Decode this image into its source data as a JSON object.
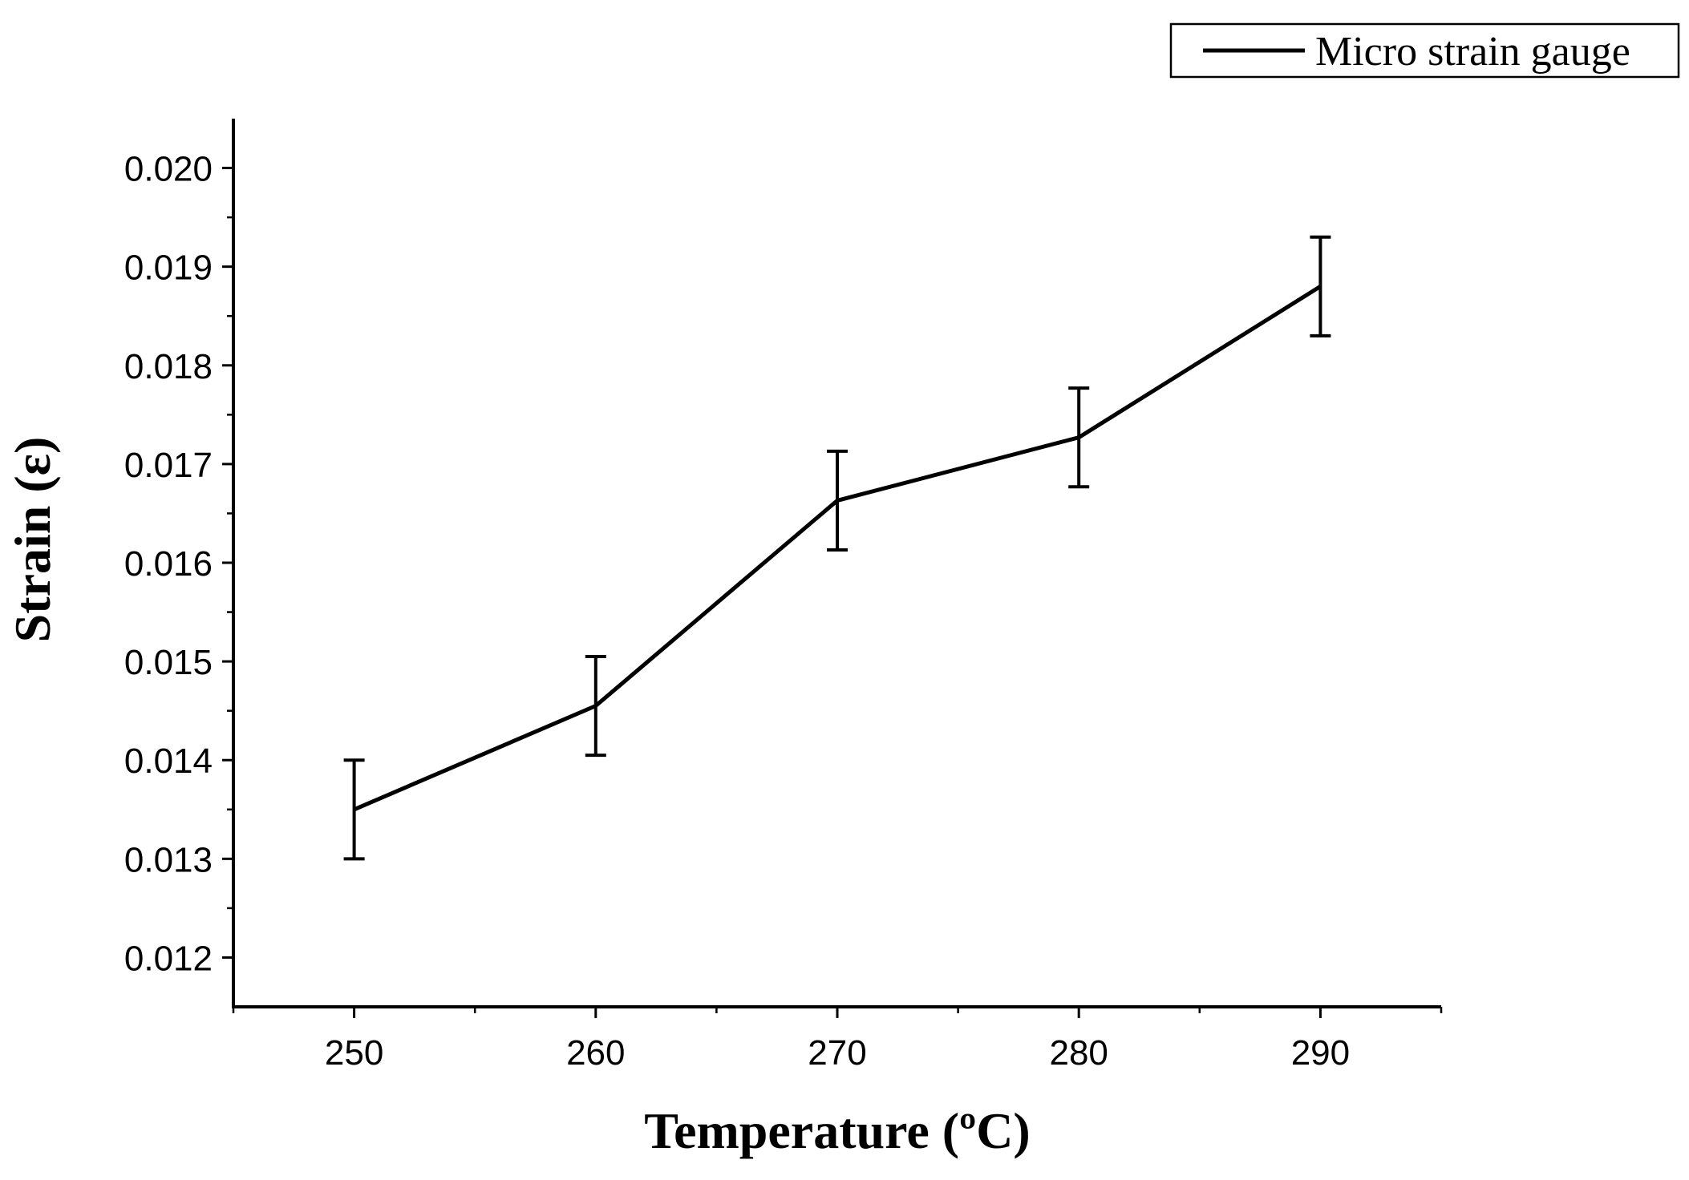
{
  "chart_data": {
    "type": "line",
    "title": "",
    "xlabel": "Temperature (ºC)",
    "ylabel": "Strain (ε)",
    "xlim": [
      245,
      295
    ],
    "ylim": [
      0.0115,
      0.0205
    ],
    "x_ticks": [
      250,
      260,
      270,
      280,
      290
    ],
    "x_tick_labels": [
      "250",
      "260",
      "270",
      "280",
      "290"
    ],
    "y_ticks": [
      0.012,
      0.013,
      0.014,
      0.015,
      0.016,
      0.017,
      0.018,
      0.019,
      0.02
    ],
    "y_tick_labels": [
      "0.012",
      "0.013",
      "0.014",
      "0.015",
      "0.016",
      "0.017",
      "0.018",
      "0.019",
      "0.020"
    ],
    "grid": false,
    "legend_position": "top-right",
    "series": [
      {
        "name": "Micro strain gauge",
        "color": "#000000",
        "x": [
          250,
          260,
          270,
          280,
          290
        ],
        "values": [
          0.0135,
          0.01455,
          0.01663,
          0.01727,
          0.0188
        ],
        "error": [
          0.0005,
          0.0005,
          0.0005,
          0.0005,
          0.0005
        ]
      }
    ]
  }
}
